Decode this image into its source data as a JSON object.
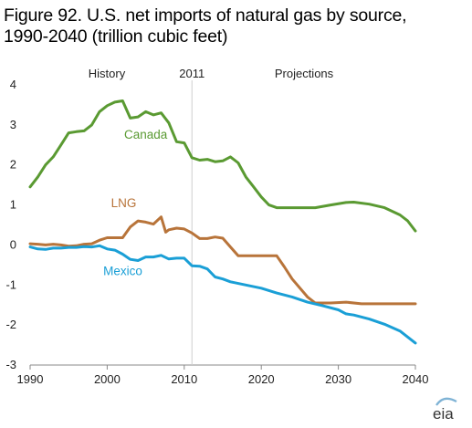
{
  "title_line1": "Figure 92. U.S. net imports of natural gas by source,",
  "title_line2": "1990-2040 (trillion cubic feet)",
  "logo_text": "eia",
  "chart_data": {
    "type": "line",
    "title": "Figure 92. U.S. net imports of natural gas by source, 1990-2040 (trillion cubic feet)",
    "xlim": [
      1990,
      2040
    ],
    "ylim": [
      -3,
      4
    ],
    "xticks": [
      1990,
      2000,
      2010,
      2020,
      2030,
      2040
    ],
    "yticks": [
      4,
      3,
      2,
      1,
      0,
      -1,
      -2,
      -3
    ],
    "grid": false,
    "divider_year": 2011,
    "annotations": {
      "history": "History",
      "divider": "2011",
      "projections": "Projections"
    },
    "series": [
      {
        "name": "Canada",
        "color": "#5a9a32",
        "points": [
          [
            1990,
            1.45
          ],
          [
            1991,
            1.7
          ],
          [
            1992,
            2.0
          ],
          [
            1993,
            2.2
          ],
          [
            1994,
            2.5
          ],
          [
            1995,
            2.8
          ],
          [
            1996,
            2.83
          ],
          [
            1997,
            2.85
          ],
          [
            1998,
            3.0
          ],
          [
            1999,
            3.33
          ],
          [
            2000,
            3.48
          ],
          [
            2001,
            3.57
          ],
          [
            2002,
            3.6
          ],
          [
            2003,
            3.17
          ],
          [
            2004,
            3.2
          ],
          [
            2005,
            3.33
          ],
          [
            2006,
            3.25
          ],
          [
            2007,
            3.3
          ],
          [
            2008,
            3.05
          ],
          [
            2009,
            2.58
          ],
          [
            2010,
            2.55
          ],
          [
            2011,
            2.18
          ],
          [
            2012,
            2.12
          ],
          [
            2013,
            2.14
          ],
          [
            2014,
            2.08
          ],
          [
            2015,
            2.1
          ],
          [
            2016,
            2.2
          ],
          [
            2017,
            2.05
          ],
          [
            2018,
            1.7
          ],
          [
            2019,
            1.45
          ],
          [
            2020,
            1.2
          ],
          [
            2021,
            1.0
          ],
          [
            2022,
            0.93
          ],
          [
            2025,
            0.93
          ],
          [
            2027,
            0.93
          ],
          [
            2029,
            1.0
          ],
          [
            2031,
            1.06
          ],
          [
            2032,
            1.07
          ],
          [
            2034,
            1.02
          ],
          [
            2036,
            0.93
          ],
          [
            2038,
            0.75
          ],
          [
            2039,
            0.6
          ],
          [
            2040,
            0.35
          ]
        ]
      },
      {
        "name": "LNG",
        "color": "#b8743a",
        "points": [
          [
            1990,
            0.03
          ],
          [
            1991,
            0.02
          ],
          [
            1992,
            0.0
          ],
          [
            1993,
            0.02
          ],
          [
            1994,
            0.0
          ],
          [
            1995,
            -0.03
          ],
          [
            1996,
            -0.02
          ],
          [
            1997,
            0.02
          ],
          [
            1998,
            0.03
          ],
          [
            1999,
            0.12
          ],
          [
            2000,
            0.18
          ],
          [
            2001,
            0.18
          ],
          [
            2002,
            0.18
          ],
          [
            2003,
            0.45
          ],
          [
            2004,
            0.6
          ],
          [
            2005,
            0.57
          ],
          [
            2006,
            0.52
          ],
          [
            2007,
            0.7
          ],
          [
            2007.6,
            0.32
          ],
          [
            2008,
            0.38
          ],
          [
            2009,
            0.42
          ],
          [
            2010,
            0.4
          ],
          [
            2011,
            0.3
          ],
          [
            2012,
            0.16
          ],
          [
            2013,
            0.16
          ],
          [
            2014,
            0.2
          ],
          [
            2015,
            0.17
          ],
          [
            2016,
            -0.05
          ],
          [
            2017,
            -0.27
          ],
          [
            2018,
            -0.27
          ],
          [
            2022,
            -0.27
          ],
          [
            2023,
            -0.55
          ],
          [
            2024,
            -0.85
          ],
          [
            2026,
            -1.3
          ],
          [
            2027,
            -1.45
          ],
          [
            2029,
            -1.45
          ],
          [
            2031,
            -1.43
          ],
          [
            2033,
            -1.47
          ],
          [
            2040,
            -1.47
          ]
        ]
      },
      {
        "name": "Mexico",
        "color": "#1a9fd6",
        "points": [
          [
            1990,
            -0.05
          ],
          [
            1991,
            -0.1
          ],
          [
            1992,
            -0.11
          ],
          [
            1993,
            -0.08
          ],
          [
            1994,
            -0.08
          ],
          [
            1995,
            -0.06
          ],
          [
            1996,
            -0.06
          ],
          [
            1997,
            -0.04
          ],
          [
            1998,
            -0.05
          ],
          [
            1999,
            -0.02
          ],
          [
            2000,
            -0.1
          ],
          [
            2001,
            -0.13
          ],
          [
            2002,
            -0.23
          ],
          [
            2003,
            -0.36
          ],
          [
            2004,
            -0.39
          ],
          [
            2005,
            -0.3
          ],
          [
            2006,
            -0.3
          ],
          [
            2007,
            -0.26
          ],
          [
            2008,
            -0.35
          ],
          [
            2009,
            -0.33
          ],
          [
            2010,
            -0.33
          ],
          [
            2011,
            -0.52
          ],
          [
            2012,
            -0.53
          ],
          [
            2013,
            -0.6
          ],
          [
            2014,
            -0.8
          ],
          [
            2015,
            -0.85
          ],
          [
            2016,
            -0.92
          ],
          [
            2018,
            -1.0
          ],
          [
            2020,
            -1.08
          ],
          [
            2022,
            -1.2
          ],
          [
            2024,
            -1.3
          ],
          [
            2026,
            -1.43
          ],
          [
            2028,
            -1.52
          ],
          [
            2030,
            -1.62
          ],
          [
            2031,
            -1.72
          ],
          [
            2032,
            -1.75
          ],
          [
            2034,
            -1.85
          ],
          [
            2036,
            -1.98
          ],
          [
            2038,
            -2.15
          ],
          [
            2040,
            -2.45
          ]
        ]
      }
    ],
    "series_labels": [
      {
        "name": "Canada",
        "x": 2002.2,
        "y": 2.65
      },
      {
        "name": "LNG",
        "x": 2000.5,
        "y": 0.95
      },
      {
        "name": "Mexico",
        "x": 1999.5,
        "y": -0.75
      }
    ]
  }
}
